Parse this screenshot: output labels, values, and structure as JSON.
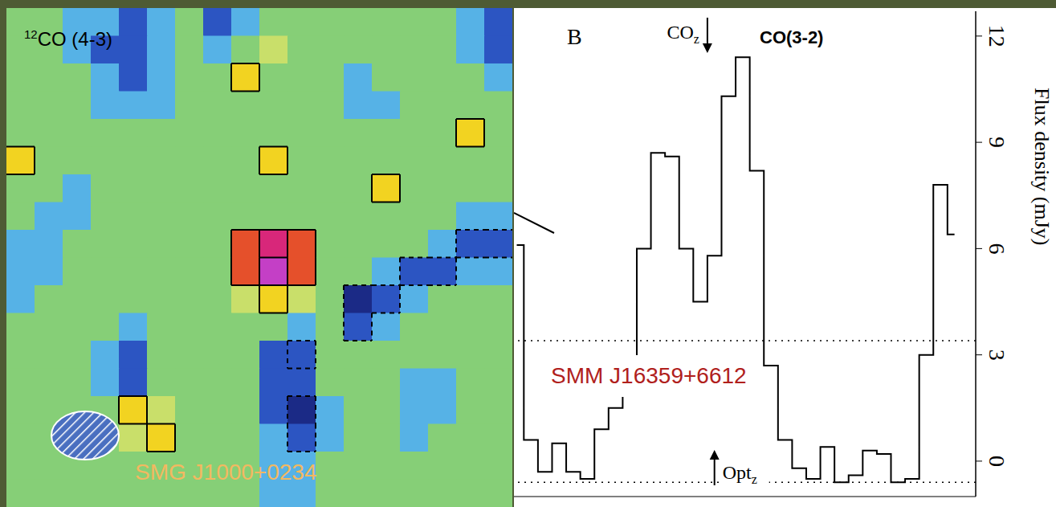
{
  "chart_data": [
    {
      "type": "heatmap",
      "title": {
        "superscript": "12",
        "text": "CO (4-3)"
      },
      "annotations": [
        "SMG J1000+0234"
      ],
      "xlim": [
        0,
        18
      ],
      "ylim": [
        0,
        18
      ],
      "tick_labels": false,
      "zlim": [
        -3,
        5
      ],
      "contour_levels": [
        -2,
        2,
        3,
        4,
        5
      ],
      "cells": [
        [
          0,
          0,
          -1,
          -1,
          -1.8,
          -1,
          0,
          -1.8,
          -1,
          0,
          0,
          0,
          0,
          0,
          0,
          0,
          -1,
          -1.8
        ],
        [
          0,
          0,
          -1,
          -1.8,
          -1.8,
          -1,
          0,
          -1,
          0,
          1,
          0,
          0,
          0,
          0,
          0,
          0,
          -1,
          -1.8
        ],
        [
          0,
          0,
          0,
          -1,
          -1.8,
          -1,
          0,
          0,
          2,
          0,
          0,
          0,
          -1,
          0,
          0,
          0,
          0,
          -1
        ],
        [
          0,
          0,
          0,
          -1,
          -1,
          -1,
          0,
          0,
          0,
          0,
          0,
          0,
          -1,
          -1,
          0,
          0,
          0,
          0
        ],
        [
          0,
          0,
          0,
          0,
          0,
          0,
          0,
          0,
          0,
          0,
          0,
          0,
          0,
          0,
          0,
          0,
          2,
          0
        ],
        [
          2,
          0,
          0,
          0,
          0,
          0,
          0,
          0,
          0,
          2,
          0,
          0,
          0,
          0,
          0,
          0,
          0,
          0
        ],
        [
          0,
          0,
          -1,
          0,
          0,
          0,
          0,
          0,
          0,
          0,
          0,
          0,
          0,
          2,
          0,
          0,
          0,
          0
        ],
        [
          0,
          -1,
          -1,
          0,
          0,
          0,
          0,
          0,
          0,
          0,
          0,
          0,
          0,
          0,
          0,
          0,
          -1,
          -1
        ],
        [
          -1,
          -1,
          0,
          0,
          0,
          0,
          0,
          0,
          3,
          4,
          3,
          0,
          0,
          0,
          0,
          -1,
          -2,
          -2
        ],
        [
          -1,
          -1,
          0,
          0,
          0,
          0,
          0,
          0,
          3,
          5,
          3,
          0,
          0,
          -1,
          -2,
          -2,
          -1,
          -1
        ],
        [
          -1,
          0,
          0,
          0,
          0,
          0,
          0,
          0,
          1,
          2,
          1,
          0,
          -3,
          -2,
          -1,
          0,
          0,
          0
        ],
        [
          0,
          0,
          0,
          0,
          -1,
          0,
          0,
          0,
          0,
          0,
          -1,
          0,
          -2,
          -1,
          0,
          0,
          0,
          0
        ],
        [
          0,
          0,
          0,
          -1,
          -1.8,
          0,
          0,
          0,
          0,
          -1.8,
          -2,
          0,
          0,
          0,
          0,
          0,
          0,
          0
        ],
        [
          0,
          0,
          0,
          -1,
          -1.8,
          0,
          0,
          0,
          0,
          -1.8,
          -1.8,
          0,
          0,
          0,
          -1,
          -1,
          0,
          0
        ],
        [
          0,
          0,
          0,
          0,
          2,
          1,
          0,
          0,
          0,
          -1.8,
          -3,
          -1,
          0,
          0,
          -1,
          -1,
          0,
          0
        ],
        [
          0,
          0,
          0,
          0,
          1,
          2,
          0,
          0,
          0,
          -1,
          -2,
          -1,
          0,
          0,
          -1,
          0,
          0,
          0
        ],
        [
          0,
          0,
          0,
          0,
          0,
          0,
          0,
          0,
          0,
          -1,
          -1,
          0,
          0,
          0,
          0,
          0,
          0,
          0
        ],
        [
          0,
          0,
          0,
          0,
          0,
          0,
          0,
          0,
          0,
          -1,
          -1,
          0,
          0,
          0,
          0,
          0,
          0,
          0
        ]
      ]
    },
    {
      "type": "line",
      "line_style": "step",
      "panel_label": "B",
      "annotations": [
        "CO(3-2)",
        "SMM J16359+6612"
      ],
      "y_label": "Flux density (mJy)",
      "color": "#000000",
      "x": [
        -8.5,
        -7.5,
        -6.5,
        -5.5,
        -4.5,
        -3.5,
        -2.5,
        -1.5,
        -0.5,
        0.5,
        1.5,
        2.5,
        3.5,
        4.5,
        5.5,
        6.5,
        7.5,
        8.5,
        9.5,
        10.5,
        11.5,
        12.5,
        13.5,
        14.5,
        15.5,
        16.5,
        17.5,
        18.5,
        19.5,
        20.5,
        21.5,
        22.5
      ],
      "values": [
        6.1,
        0.6,
        -0.3,
        0.5,
        -0.3,
        -0.5,
        0.9,
        1.5,
        2.6,
        6.0,
        8.7,
        8.6,
        6.0,
        4.5,
        5.8,
        10.3,
        11.4,
        8.2,
        2.7,
        0.6,
        -0.2,
        -0.5,
        0.4,
        -0.6,
        -0.4,
        0.3,
        0.2,
        -0.6,
        -0.5,
        3.0,
        7.8,
        6.4
      ],
      "xlim": [
        -8.7,
        24
      ],
      "ylim": [
        -1,
        12.7
      ],
      "yticks": [
        0,
        3,
        6,
        9,
        12
      ],
      "tick_labels": "y",
      "dotted_levels": [
        3.4,
        -0.6
      ],
      "markers": [
        {
          "text": "CO",
          "subscript": "z",
          "x": 5.0,
          "direction": "down"
        },
        {
          "text": "Opt",
          "subscript": "z",
          "x": 5.5,
          "direction": "up"
        }
      ]
    }
  ]
}
